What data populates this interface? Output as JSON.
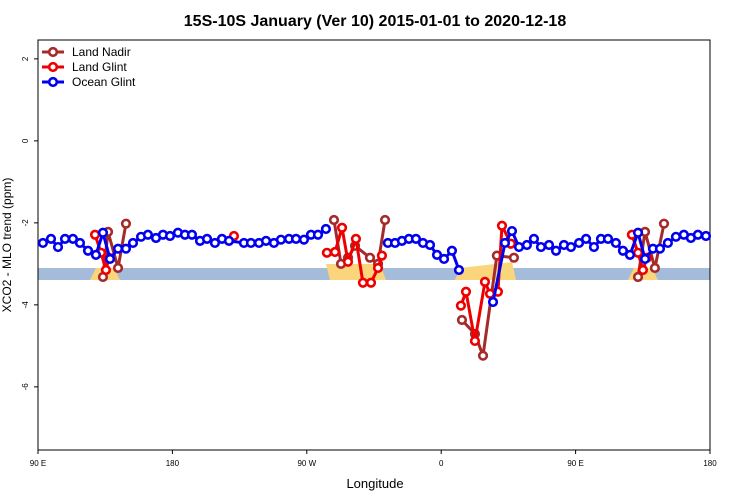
{
  "chart_data": {
    "type": "line",
    "title": "15S-10S January (Ver 10)   2015-01-01 to 2020-12-18",
    "xlabel": "Longitude",
    "ylabel": "XCO2 - MLO trend (ppm)",
    "xlim": [
      90,
      540
    ],
    "ylim": [
      -7.54,
      2.46
    ],
    "xticks": [
      {
        "value": 90,
        "label": "90 E"
      },
      180,
      {
        "value": 270,
        "label": "90 W"
      },
      {
        "value": 360,
        "label": "0"
      },
      {
        "value": 450,
        "label": "90 E"
      },
      {
        "value": 540,
        "label": "180"
      }
    ],
    "yticks": [
      2,
      0,
      -2,
      -4,
      -6
    ],
    "legend": "top-left",
    "series": [
      {
        "name": "Land Nadir",
        "color": "#a52a2a",
        "x": [
          133.5,
          136.9,
          143.6,
          148.9,
          null,
          288.2,
          292.9,
          297.6,
          302.3,
          312.3,
          317.7,
          322.4,
          null,
          373.9,
          382.6,
          388.0,
          397.3,
          408.7,
          null,
          491.8,
          496.5,
          503.1,
          509.2
        ],
        "values": [
          -3.32,
          -2.22,
          -3.1,
          -2.02,
          null,
          -1.93,
          -3.0,
          -2.85,
          -2.56,
          -2.85,
          -3.0,
          -1.93,
          null,
          -4.37,
          -4.71,
          -5.24,
          -2.8,
          -2.85,
          null,
          -3.32,
          -2.22,
          -3.1,
          -2.02
        ]
      },
      {
        "name": "Land Glint",
        "color": "#ee0000",
        "x": [
          128.2,
          132.2,
          135.5,
          137.5,
          null,
          221.2,
          null,
          283.5,
          288.9,
          293.6,
          297.6,
          302.9,
          307.6,
          313.0,
          317.7,
          320.3,
          null,
          373.2,
          376.6,
          382.6,
          389.3,
          392.7,
          398.0,
          400.7,
          406.7,
          null,
          487.7,
          491.8,
          495.1,
          497.8
        ],
        "values": [
          -2.29,
          -2.73,
          -3.15,
          -2.85,
          null,
          -2.32,
          null,
          -2.73,
          -2.71,
          -2.12,
          -2.95,
          -2.39,
          -3.46,
          -3.46,
          -3.1,
          -2.8,
          null,
          -4.02,
          -3.68,
          -4.88,
          -3.44,
          -3.73,
          -3.68,
          -2.07,
          -2.51,
          null,
          -2.29,
          -2.73,
          -3.15,
          -2.85
        ]
      },
      {
        "name": "Ocean Glint",
        "color": "#0000ee",
        "x": [
          93.3,
          98.7,
          103.4,
          108.1,
          113.4,
          118.1,
          123.5,
          128.8,
          133.5,
          138.2,
          143.6,
          148.9,
          153.6,
          159.0,
          163.6,
          169.0,
          173.7,
          178.4,
          183.7,
          188.4,
          193.1,
          198.5,
          203.2,
          208.5,
          213.2,
          217.9,
          227.9,
          232.6,
          238.0,
          242.7,
          248.0,
          252.7,
          258.1,
          262.8,
          268.1,
          272.8,
          277.5,
          282.8,
          null,
          324.3,
          329.1,
          333.7,
          338.4,
          343.1,
          347.8,
          352.5,
          357.2,
          361.9,
          367.2,
          371.9,
          null,
          394.7,
          402.7,
          407.4,
          412.1,
          417.4,
          422.1,
          426.8,
          432.2,
          436.9,
          442.2,
          446.9,
          452.3,
          457.0,
          462.3,
          467.0,
          471.7,
          477.0,
          481.7,
          486.4,
          491.8,
          496.5,
          501.8,
          506.5,
          511.8,
          517.2,
          522.5,
          527.2,
          531.9,
          537.3
        ],
        "values": [
          -2.49,
          -2.39,
          -2.59,
          -2.39,
          -2.39,
          -2.49,
          -2.68,
          -2.78,
          -2.24,
          -2.88,
          -2.63,
          -2.63,
          -2.49,
          -2.34,
          -2.29,
          -2.37,
          -2.29,
          -2.32,
          -2.24,
          -2.29,
          -2.29,
          -2.44,
          -2.39,
          -2.49,
          -2.39,
          -2.44,
          -2.49,
          -2.49,
          -2.49,
          -2.44,
          -2.49,
          -2.41,
          -2.39,
          -2.39,
          -2.41,
          -2.29,
          -2.29,
          -2.15,
          null,
          -2.49,
          -2.49,
          -2.44,
          -2.39,
          -2.39,
          -2.49,
          -2.54,
          -2.78,
          -2.88,
          -2.68,
          -3.15,
          null,
          -3.93,
          -2.49,
          -2.2,
          -2.59,
          -2.54,
          -2.39,
          -2.59,
          -2.54,
          -2.68,
          -2.54,
          -2.59,
          -2.49,
          -2.39,
          -2.59,
          -2.39,
          -2.39,
          -2.49,
          -2.68,
          -2.78,
          -2.24,
          -2.88,
          -2.63,
          -2.63,
          -2.49,
          -2.34,
          -2.29,
          -2.37,
          -2.29,
          -2.32
        ]
      }
    ]
  }
}
